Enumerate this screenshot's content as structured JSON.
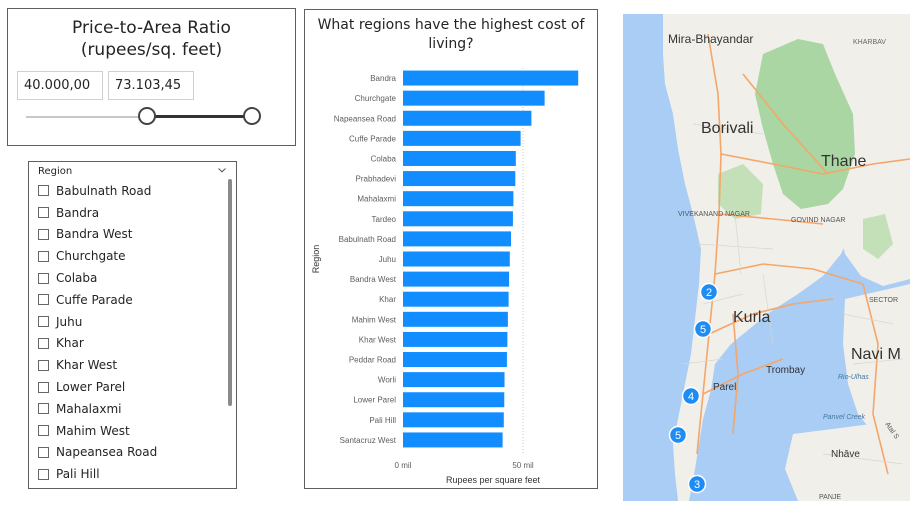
{
  "slicer": {
    "title_line1": "Price-to-Area Ratio",
    "title_line2": "(rupees/sq. feet)",
    "min_value": "40.000,00",
    "max_value": "73.103,45",
    "range_low_fraction": 0.54,
    "range_high_fraction": 1.0
  },
  "region_slicer": {
    "header": "Region",
    "items": [
      {
        "label": "Babulnath Road",
        "checked": false
      },
      {
        "label": "Bandra",
        "checked": false
      },
      {
        "label": "Bandra West",
        "checked": false
      },
      {
        "label": "Churchgate",
        "checked": false
      },
      {
        "label": "Colaba",
        "checked": false
      },
      {
        "label": "Cuffe Parade",
        "checked": false
      },
      {
        "label": "Juhu",
        "checked": false
      },
      {
        "label": "Khar",
        "checked": false
      },
      {
        "label": "Khar West",
        "checked": false
      },
      {
        "label": "Lower Parel",
        "checked": false
      },
      {
        "label": "Mahalaxmi",
        "checked": false
      },
      {
        "label": "Mahim West",
        "checked": false
      },
      {
        "label": "Napeansea Road",
        "checked": false
      },
      {
        "label": "Pali Hill",
        "checked": false
      }
    ]
  },
  "chart_data": {
    "type": "bar",
    "orientation": "horizontal",
    "title": "What regions have the highest cost of living?",
    "xlabel": "Rupees per square feet",
    "ylabel": "Region",
    "categories": [
      "Bandra",
      "Churchgate",
      "Napeansea Road",
      "Cuffe Parade",
      "Colaba",
      "Prabhadevi",
      "Mahalaxmi",
      "Tardeo",
      "Babulnath Road",
      "Juhu",
      "Bandra West",
      "Khar",
      "Mahim West",
      "Khar West",
      "Peddar Road",
      "Worli",
      "Lower Parel",
      "Pali Hill",
      "Santacruz West"
    ],
    "values": [
      73000,
      59000,
      53500,
      49000,
      47000,
      46800,
      46000,
      45800,
      45000,
      44500,
      44200,
      44000,
      43700,
      43500,
      43300,
      42300,
      42200,
      42000,
      41500
    ],
    "xlim": [
      0,
      80000
    ],
    "xticks": [
      "0 mil",
      "50 mil"
    ],
    "xtick_values": [
      0,
      50000
    ],
    "bar_color": "#118DFF",
    "grid": true
  },
  "map": {
    "labels": {
      "mira": "Mira-Bhayandar",
      "kharbav": "KHARBAV",
      "borivali": "Borivali",
      "thane": "Thane",
      "vivekanand": "VIVEKANAND NAGAR",
      "govind": "GOVIND NAGAR",
      "sector": "SECTOR",
      "kurla": "Kurla",
      "navi": "Navi M",
      "trombay": "Trombay",
      "rio": "Rio-Ulhas",
      "parel": "Parel",
      "panvel": "Panvel Creek",
      "nhave": "Nhāve",
      "panje": "PANJE",
      "atal": "Atal S"
    },
    "clusters": [
      "2",
      "5",
      "4",
      "5",
      "3"
    ],
    "water_color": "#a9cdf4",
    "land_color": "#f1efe9",
    "park_color": "#a9d6a3",
    "marker_color": "#1f8cf3"
  }
}
